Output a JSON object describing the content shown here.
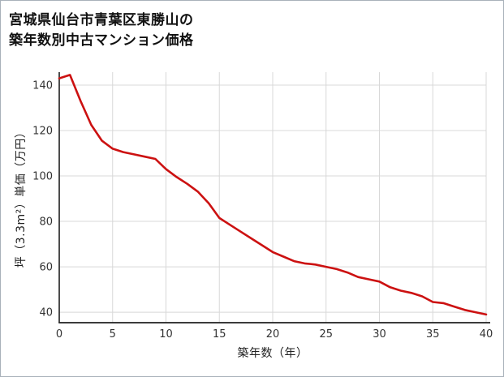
{
  "title": {
    "line1": "宮城県仙台市青葉区東勝山の",
    "line2": "築年数別中古マンション価格"
  },
  "chart_data": {
    "type": "line",
    "title": "宮城県仙台市青葉区東勝山の築年数別中古マンション価格",
    "xlabel": "築年数（年）",
    "ylabel": "坪（3.3m²）単価（万円）",
    "x": [
      0,
      1,
      2,
      3,
      4,
      5,
      6,
      7,
      8,
      9,
      10,
      11,
      12,
      13,
      14,
      15,
      16,
      17,
      18,
      19,
      20,
      21,
      22,
      23,
      24,
      25,
      26,
      27,
      28,
      29,
      30,
      31,
      32,
      33,
      34,
      35,
      36,
      37,
      38,
      39,
      40
    ],
    "values": [
      143,
      144.5,
      133,
      122.5,
      115.5,
      112,
      110.5,
      109.5,
      108.5,
      107.5,
      103,
      99.5,
      96.5,
      93,
      88,
      81.5,
      78.5,
      75.5,
      72.5,
      69.5,
      66.5,
      64.5,
      62.5,
      61.5,
      61,
      60,
      59,
      57.5,
      55.5,
      54.5,
      53.5,
      51,
      49.5,
      48.5,
      47,
      44.5,
      44,
      42.5,
      41,
      40,
      39
    ],
    "x_ticks": [
      0,
      5,
      10,
      15,
      20,
      25,
      30,
      35,
      40
    ],
    "y_ticks": [
      40,
      60,
      80,
      100,
      120,
      140
    ],
    "xlim": [
      0,
      40
    ],
    "ylim": [
      35.4,
      145.7
    ],
    "grid": true,
    "legend": false,
    "line_color": "#cc1111",
    "grid_color": "#d8d8d8",
    "axis_color": "#1f1f1f",
    "tick_label_color": "#333333"
  }
}
